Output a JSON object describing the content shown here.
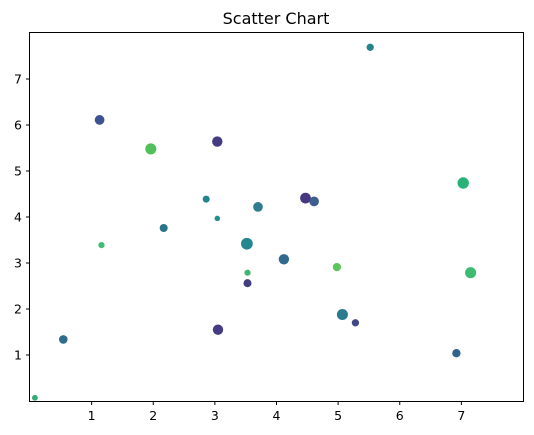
{
  "chart_data": {
    "type": "scatter",
    "title": "Scatter Chart",
    "xlabel": "",
    "ylabel": "",
    "xlim": [
      0.0,
      8.0
    ],
    "ylim": [
      0.0,
      8.0
    ],
    "x_ticks": [
      1,
      2,
      3,
      4,
      5,
      6,
      7
    ],
    "y_ticks": [
      1,
      2,
      3,
      4,
      5,
      6,
      7
    ],
    "grid": false,
    "colormap": "viridis",
    "points": [
      {
        "x": 0.08,
        "y": 0.07,
        "size": 22,
        "color": "#3aaa74"
      },
      {
        "x": 0.54,
        "y": 1.34,
        "size": 48,
        "color": "#2e6c8e"
      },
      {
        "x": 1.13,
        "y": 6.11,
        "size": 62,
        "color": "#3e5190"
      },
      {
        "x": 1.16,
        "y": 3.39,
        "size": 25,
        "color": "#3fbe6f"
      },
      {
        "x": 1.96,
        "y": 5.48,
        "size": 80,
        "color": "#52c05a"
      },
      {
        "x": 2.17,
        "y": 3.76,
        "size": 42,
        "color": "#2a758e"
      },
      {
        "x": 2.86,
        "y": 4.39,
        "size": 32,
        "color": "#25838d"
      },
      {
        "x": 3.04,
        "y": 5.64,
        "size": 70,
        "color": "#443a83"
      },
      {
        "x": 3.04,
        "y": 3.97,
        "size": 20,
        "color": "#22908b"
      },
      {
        "x": 3.05,
        "y": 1.55,
        "size": 70,
        "color": "#453b83"
      },
      {
        "x": 3.52,
        "y": 3.42,
        "size": 90,
        "color": "#24878d"
      },
      {
        "x": 3.53,
        "y": 2.79,
        "size": 25,
        "color": "#3fb56f"
      },
      {
        "x": 3.53,
        "y": 2.56,
        "size": 42,
        "color": "#433d84"
      },
      {
        "x": 3.7,
        "y": 4.22,
        "size": 62,
        "color": "#2f7d8e"
      },
      {
        "x": 4.12,
        "y": 3.08,
        "size": 70,
        "color": "#316a8e"
      },
      {
        "x": 4.47,
        "y": 4.41,
        "size": 75,
        "color": "#453881"
      },
      {
        "x": 4.61,
        "y": 4.34,
        "size": 62,
        "color": "#3e5c8e"
      },
      {
        "x": 4.98,
        "y": 2.91,
        "size": 45,
        "color": "#5ec45e"
      },
      {
        "x": 5.07,
        "y": 1.88,
        "size": 80,
        "color": "#2b7a8e"
      },
      {
        "x": 5.28,
        "y": 1.7,
        "size": 35,
        "color": "#424885"
      },
      {
        "x": 5.52,
        "y": 7.69,
        "size": 35,
        "color": "#23848d"
      },
      {
        "x": 6.92,
        "y": 1.04,
        "size": 45,
        "color": "#2f628d"
      },
      {
        "x": 7.03,
        "y": 4.74,
        "size": 85,
        "color": "#28b27a"
      },
      {
        "x": 7.15,
        "y": 2.79,
        "size": 80,
        "color": "#3fbb72"
      }
    ]
  }
}
